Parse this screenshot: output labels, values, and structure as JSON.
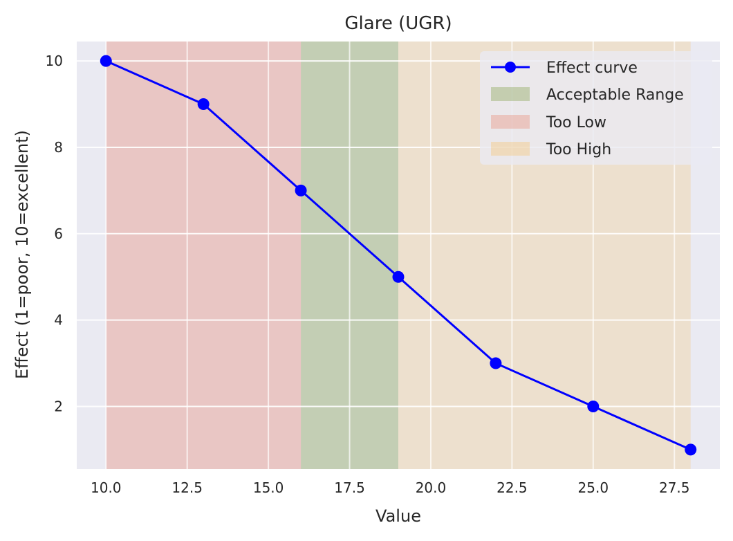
{
  "chart_data": {
    "type": "line",
    "title": "Glare (UGR)",
    "xlabel": "Value",
    "ylabel": "Effect (1=poor, 10=excellent)",
    "xlim": [
      9.1,
      28.9
    ],
    "ylim": [
      0.55,
      10.45
    ],
    "xticks": [
      10.0,
      12.5,
      15.0,
      17.5,
      20.0,
      22.5,
      25.0,
      27.5
    ],
    "xtick_labels": [
      "10.0",
      "12.5",
      "15.0",
      "17.5",
      "20.0",
      "22.5",
      "25.0",
      "27.5"
    ],
    "yticks": [
      2,
      4,
      6,
      8,
      10
    ],
    "ytick_labels": [
      "2",
      "4",
      "6",
      "8",
      "10"
    ],
    "grid": true,
    "legend_position": "top-right",
    "series": [
      {
        "name": "Effect curve",
        "color": "#0000ff",
        "marker": "circle",
        "x": [
          10,
          13,
          16,
          19,
          22,
          25,
          28
        ],
        "y": [
          10,
          9,
          7,
          5,
          3,
          2,
          1
        ]
      }
    ],
    "regions": [
      {
        "name": "Acceptable Range",
        "x_start": 16,
        "x_end": 19,
        "color": "#6b8e23"
      },
      {
        "name": "Too Low",
        "x_start": 10,
        "x_end": 16,
        "color": "#e8735a"
      },
      {
        "name": "Too High",
        "x_start": 19,
        "x_end": 28,
        "color": "#ffa500"
      }
    ],
    "legend": [
      "Effect curve",
      "Acceptable Range",
      "Too Low",
      "Too High"
    ]
  }
}
